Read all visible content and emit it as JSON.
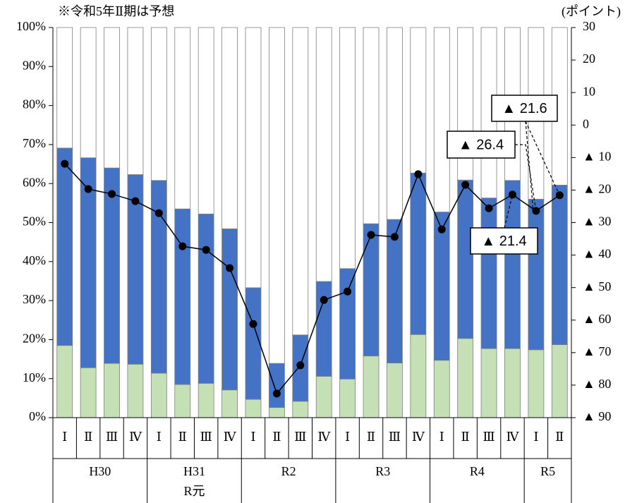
{
  "chart_data": {
    "type": "stacked-bar-line",
    "note": "※令和5年Ⅱ期は予想",
    "y2_label": "(ポイント)",
    "groups": [
      {
        "label": [
          "H30"
        ],
        "categories": [
          "Ⅰ",
          "Ⅱ",
          "Ⅲ",
          "Ⅳ"
        ]
      },
      {
        "label": [
          "H31",
          "R元"
        ],
        "categories": [
          "Ⅰ",
          "Ⅱ",
          "Ⅲ",
          "Ⅳ"
        ]
      },
      {
        "label": [
          "R2"
        ],
        "categories": [
          "Ⅰ",
          "Ⅱ",
          "Ⅲ",
          "Ⅳ"
        ]
      },
      {
        "label": [
          "R3"
        ],
        "categories": [
          "Ⅰ",
          "Ⅱ",
          "Ⅲ",
          "Ⅳ"
        ]
      },
      {
        "label": [
          "R4"
        ],
        "categories": [
          "Ⅰ",
          "Ⅱ",
          "Ⅲ",
          "Ⅳ"
        ]
      },
      {
        "label": [
          "R5"
        ],
        "categories": [
          "Ⅰ",
          "Ⅱ"
        ]
      }
    ],
    "series": [
      {
        "color": "#c5e0b4",
        "values": [
          18.5,
          12.8,
          13.9,
          13.7,
          11.4,
          8.5,
          8.8,
          7.1,
          4.7,
          2.6,
          4.2,
          10.6,
          9.9,
          15.8,
          14.0,
          21.3,
          14.7,
          20.3,
          17.7,
          17.7,
          17.4,
          18.7
        ]
      },
      {
        "color": "#4472c4",
        "values": [
          50.6,
          53.8,
          50.1,
          48.6,
          49.4,
          45.0,
          43.4,
          41.3,
          28.6,
          11.3,
          17.0,
          24.3,
          28.3,
          33.9,
          36.8,
          41.4,
          38.0,
          40.6,
          38.6,
          43.1,
          38.6,
          40.9
        ]
      },
      {
        "color": "#ffffff",
        "values": [
          30.9,
          33.4,
          36.0,
          37.7,
          39.2,
          46.5,
          47.8,
          51.6,
          66.7,
          86.1,
          78.8,
          65.1,
          61.8,
          50.3,
          49.2,
          37.3,
          47.3,
          39.1,
          43.7,
          39.2,
          44.0,
          40.4
        ]
      },
      {
        "color": "#000000",
        "axis": "y2",
        "values": [
          -11.9,
          -19.7,
          -21.2,
          -23.4,
          -27.1,
          -37.3,
          -38.4,
          -44.0,
          -61.2,
          -82.6,
          -73.9,
          -53.8,
          -51.2,
          -33.8,
          -34.4,
          -15.1,
          -32.1,
          -18.4,
          -25.6,
          -21.4,
          -26.4,
          -21.6
        ]
      }
    ],
    "value_labels": {
      "19": "▲ 21.4",
      "20": "▲ 26.4",
      "21": "▲ 21.6"
    },
    "ylim": [
      0,
      100
    ],
    "yticks": [
      {
        "value": 0,
        "label": "0%"
      },
      {
        "value": 10,
        "label": "10%"
      },
      {
        "value": 20,
        "label": "20%"
      },
      {
        "value": 30,
        "label": "30%"
      },
      {
        "value": 40,
        "label": "40%"
      },
      {
        "value": 50,
        "label": "50%"
      },
      {
        "value": 60,
        "label": "60%"
      },
      {
        "value": 70,
        "label": "70%"
      },
      {
        "value": 80,
        "label": "80%"
      },
      {
        "value": 90,
        "label": "90%"
      },
      {
        "value": 100,
        "label": "100%"
      }
    ],
    "y2lim": [
      -90,
      30
    ],
    "y2ticks": [
      30,
      20,
      10,
      0,
      {
        "value": -10,
        "label": "▲ 10"
      },
      {
        "value": -20,
        "label": "▲ 20"
      },
      {
        "value": -30,
        "label": "▲ 30"
      },
      {
        "value": -40,
        "label": "▲ 40"
      },
      {
        "value": -50,
        "label": "▲ 50"
      },
      {
        "value": -60,
        "label": "▲ 60"
      },
      {
        "value": -70,
        "label": "▲ 70"
      },
      {
        "value": -80,
        "label": "▲ 80"
      },
      {
        "value": -90,
        "label": "▲ 90"
      }
    ]
  }
}
